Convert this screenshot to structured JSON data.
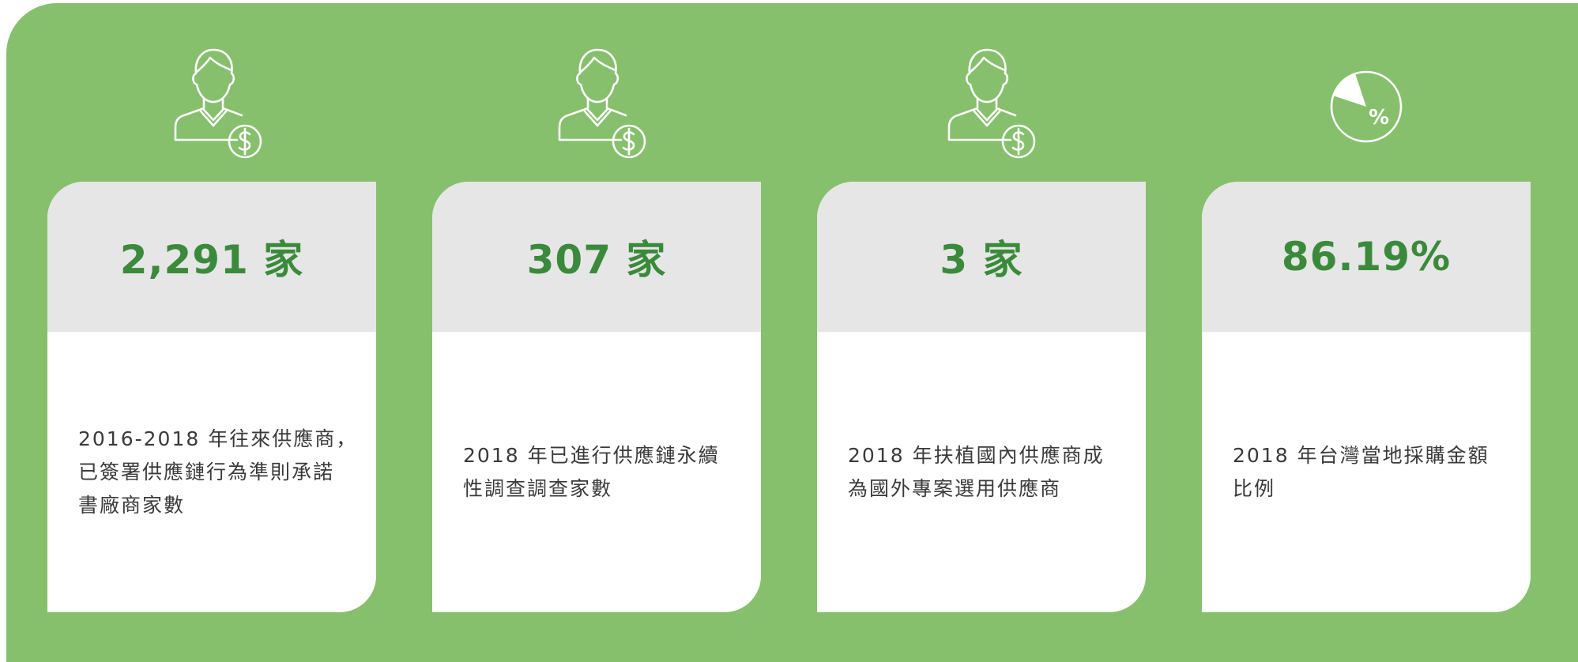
{
  "cards": [
    {
      "value": "2,291 家",
      "description": [
        "2016-2018 年往來供應商，",
        "已簽署供應鏈行為準則承諾",
        "書廠商家數"
      ]
    },
    {
      "value": "307 家",
      "description": [
        "2018 年已進行供應鏈永續",
        "性調查調查家數"
      ]
    },
    {
      "value": "3 家",
      "description": [
        "2018 年扶植國內供應商成",
        "為國外專案選用供應商"
      ]
    },
    {
      "value": "86.19%",
      "icon_label": "%",
      "description": [
        "2018 年台灣當地採購金額",
        "比例"
      ]
    }
  ]
}
